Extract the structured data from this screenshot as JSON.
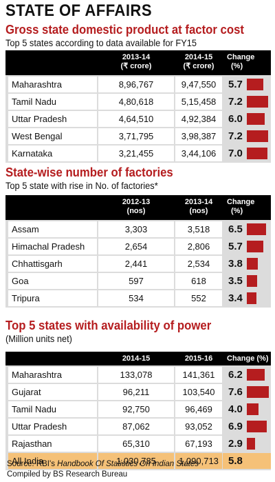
{
  "title": "STATE OF AFFAIRS",
  "colors": {
    "accent": "#b51d1f",
    "header_bg": "#000000",
    "highlight": "#f5c178"
  },
  "chart_data": [
    {
      "type": "bar",
      "title": "Gross state domestic product at factor cost",
      "subtitle": "Top 5 states according to data available for FY15",
      "columns": [
        "2013-14",
        "2014-15",
        "Change"
      ],
      "units": [
        "(₹ crore)",
        "(₹ crore)",
        "(%)"
      ],
      "rows": [
        {
          "state": "Maharashtra",
          "c1": "8,96,767",
          "c2": "9,47,550",
          "change": "5.7",
          "value": 5.7
        },
        {
          "state": "Tamil Nadu",
          "c1": "4,80,618",
          "c2": "5,15,458",
          "change": "7.2",
          "value": 7.2
        },
        {
          "state": "Uttar Pradesh",
          "c1": "4,64,510",
          "c2": "4,92,384",
          "change": "6.0",
          "value": 6.0
        },
        {
          "state": "West Bengal",
          "c1": "3,71,795",
          "c2": "3,98,387",
          "change": "7.2",
          "value": 7.2
        },
        {
          "state": "Karnataka",
          "c1": "3,21,455",
          "c2": "3,44,106",
          "change": "7.0",
          "value": 7.0
        }
      ]
    },
    {
      "type": "bar",
      "title": "State-wise number of factories",
      "subtitle": "Top 5 state with rise in No. of factories*",
      "columns": [
        "2012-13",
        "2013-14",
        "Change"
      ],
      "units": [
        "(nos)",
        "(nos)",
        "(%)"
      ],
      "rows": [
        {
          "state": "Assam",
          "c1": "3,303",
          "c2": "3,518",
          "change": "6.5",
          "value": 6.5
        },
        {
          "state": "Himachal Pradesh",
          "c1": "2,654",
          "c2": "2,806",
          "change": "5.7",
          "value": 5.7
        },
        {
          "state": "Chhattisgarh",
          "c1": "2,441",
          "c2": "2,534",
          "change": "3.8",
          "value": 3.8
        },
        {
          "state": "Goa",
          "c1": "597",
          "c2": "618",
          "change": "3.5",
          "value": 3.5
        },
        {
          "state": "Tripura",
          "c1": "534",
          "c2": "552",
          "change": "3.4",
          "value": 3.4
        }
      ]
    },
    {
      "type": "bar",
      "title": "Top 5 states with availability of power",
      "subtitle": "(Million units net)",
      "columns": [
        "2014-15",
        "2015-16",
        "Change (%)"
      ],
      "rows": [
        {
          "state": "Maharashtra",
          "c1": "133,078",
          "c2": "141,361",
          "change": "6.2",
          "value": 6.2
        },
        {
          "state": "Gujarat",
          "c1": "96,211",
          "c2": "103,540",
          "change": "7.6",
          "value": 7.6
        },
        {
          "state": "Tamil Nadu",
          "c1": "92,750",
          "c2": "96,469",
          "change": "4.0",
          "value": 4.0
        },
        {
          "state": "Uttar Pradesh",
          "c1": "87,062",
          "c2": "93,052",
          "change": "6.9",
          "value": 6.9
        },
        {
          "state": "Rajasthan",
          "c1": "65,310",
          "c2": "67,193",
          "change": "2.9",
          "value": 2.9
        }
      ],
      "total_row": {
        "state": "All India",
        "c1": "1,030,785",
        "c2": "1,090,713",
        "change": "5.8"
      }
    }
  ],
  "footer": {
    "source_prefix": "Source: RBI's ",
    "source_title": "Handbook Of Statistics On Indian States",
    "compiled": "Compiled by BS Research Bureau"
  }
}
